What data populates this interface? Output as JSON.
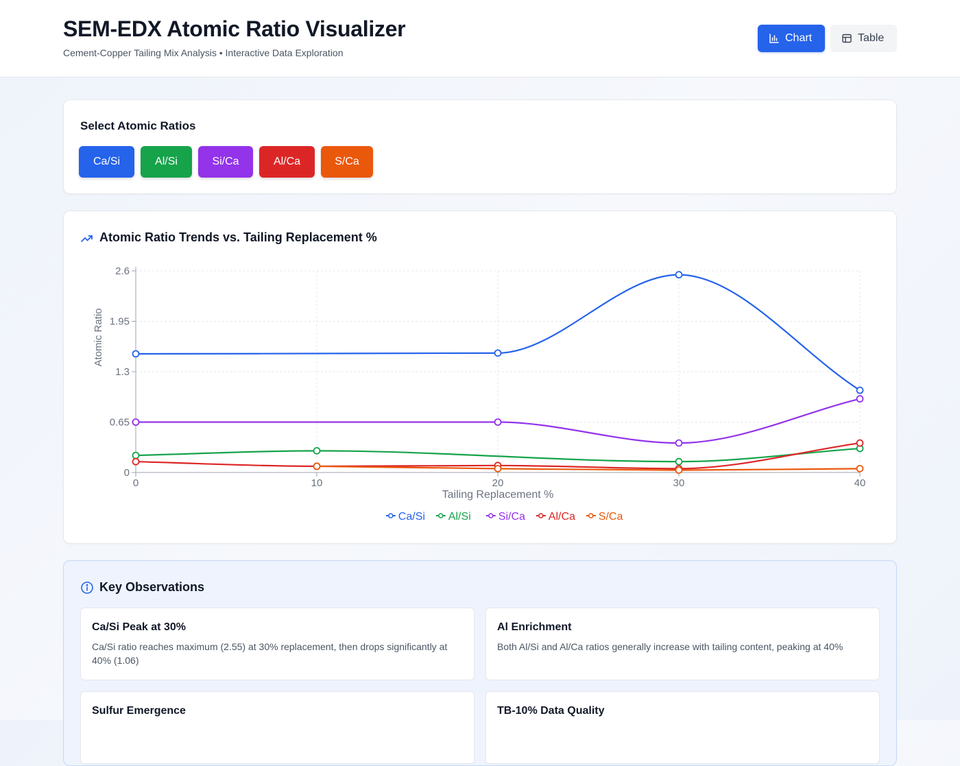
{
  "header": {
    "title": "SEM-EDX Atomic Ratio Visualizer",
    "subtitle": "Cement-Copper Tailing Mix Analysis • Interactive Data Exploration",
    "chart_label": "Chart",
    "table_label": "Table"
  },
  "selector": {
    "title": "Select Atomic Ratios",
    "buttons": [
      {
        "label": "Ca/Si",
        "color": "#2563eb"
      },
      {
        "label": "Al/Si",
        "color": "#16a34a"
      },
      {
        "label": "Si/Ca",
        "color": "#9333ea"
      },
      {
        "label": "Al/Ca",
        "color": "#dc2626"
      },
      {
        "label": "S/Ca",
        "color": "#ea580c"
      }
    ]
  },
  "chart_panel": {
    "title": "Atomic Ratio Trends vs. Tailing Replacement %"
  },
  "chart_data": {
    "type": "line",
    "xlabel": "Tailing Replacement %",
    "ylabel": "Atomic Ratio",
    "xticks": [
      "0",
      "10",
      "20",
      "30",
      "40"
    ],
    "yticks": [
      "0",
      "0.65",
      "1.3",
      "1.95",
      "2.6"
    ],
    "xlim": [
      0,
      40
    ],
    "ylim": [
      0,
      2.6
    ],
    "grid": true,
    "legend_position": "bottom-center",
    "series": [
      {
        "name": "Ca/Si",
        "color": "#2563eb",
        "points": [
          [
            0,
            1.53
          ],
          [
            20,
            1.54
          ],
          [
            30,
            2.55
          ],
          [
            40,
            1.06
          ]
        ]
      },
      {
        "name": "Al/Si",
        "color": "#16a34a",
        "points": [
          [
            0,
            0.22
          ],
          [
            10,
            0.28
          ],
          [
            30,
            0.14
          ],
          [
            40,
            0.31
          ]
        ]
      },
      {
        "name": "Si/Ca",
        "color": "#9333ea",
        "points": [
          [
            0,
            0.65
          ],
          [
            20,
            0.65
          ],
          [
            30,
            0.38
          ],
          [
            40,
            0.95
          ]
        ]
      },
      {
        "name": "Al/Ca",
        "color": "#dc2626",
        "points": [
          [
            0,
            0.14
          ],
          [
            10,
            0.08
          ],
          [
            20,
            0.09
          ],
          [
            30,
            0.05
          ],
          [
            40,
            0.38
          ]
        ]
      },
      {
        "name": "S/Ca",
        "color": "#ea580c",
        "points": [
          [
            10,
            0.08
          ],
          [
            20,
            0.05
          ],
          [
            30,
            0.03
          ],
          [
            40,
            0.05
          ]
        ]
      }
    ]
  },
  "observations": {
    "title": "Key Observations",
    "items": [
      {
        "title": "Ca/Si Peak at 30%",
        "text": "Ca/Si ratio reaches maximum (2.55) at 30% replacement, then drops significantly at 40% (1.06)"
      },
      {
        "title": "Al Enrichment",
        "text": "Both Al/Si and Al/Ca ratios generally increase with tailing content, peaking at 40%"
      },
      {
        "title": "Sulfur Emergence",
        "text": ""
      },
      {
        "title": "TB-10% Data Quality",
        "text": ""
      }
    ]
  }
}
